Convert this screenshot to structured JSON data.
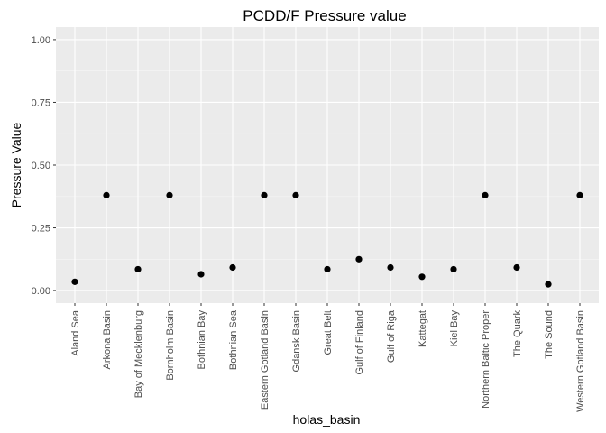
{
  "chart_data": {
    "type": "scatter",
    "title": "PCDD/F Pressure value",
    "xlabel": "holas_basin",
    "ylabel": "Pressure Value",
    "ylim": [
      0,
      1
    ],
    "yticks": [
      "0.00",
      "0.25",
      "0.50",
      "0.75",
      "1.00"
    ],
    "grid": true,
    "legend": "none",
    "point_color": "#000000",
    "panel_color": "#ebebeb",
    "categories": [
      "Aland Sea",
      "Arkona Basin",
      "Bay of Mecklenburg",
      "Bornholm Basin",
      "Bothnian Bay",
      "Bothnian Sea",
      "Eastern Gotland Basin",
      "Gdansk Basin",
      "Great Belt",
      "Gulf of Finland",
      "Gulf of Riga",
      "Kattegat",
      "Kiel Bay",
      "Northern Baltic Proper",
      "The Quark",
      "The Sound",
      "Western Gotland Basin"
    ],
    "values": [
      0.035,
      0.38,
      0.085,
      0.38,
      0.065,
      0.092,
      0.38,
      0.38,
      0.085,
      0.125,
      0.092,
      0.055,
      0.085,
      0.38,
      0.092,
      0.025,
      0.38
    ]
  }
}
